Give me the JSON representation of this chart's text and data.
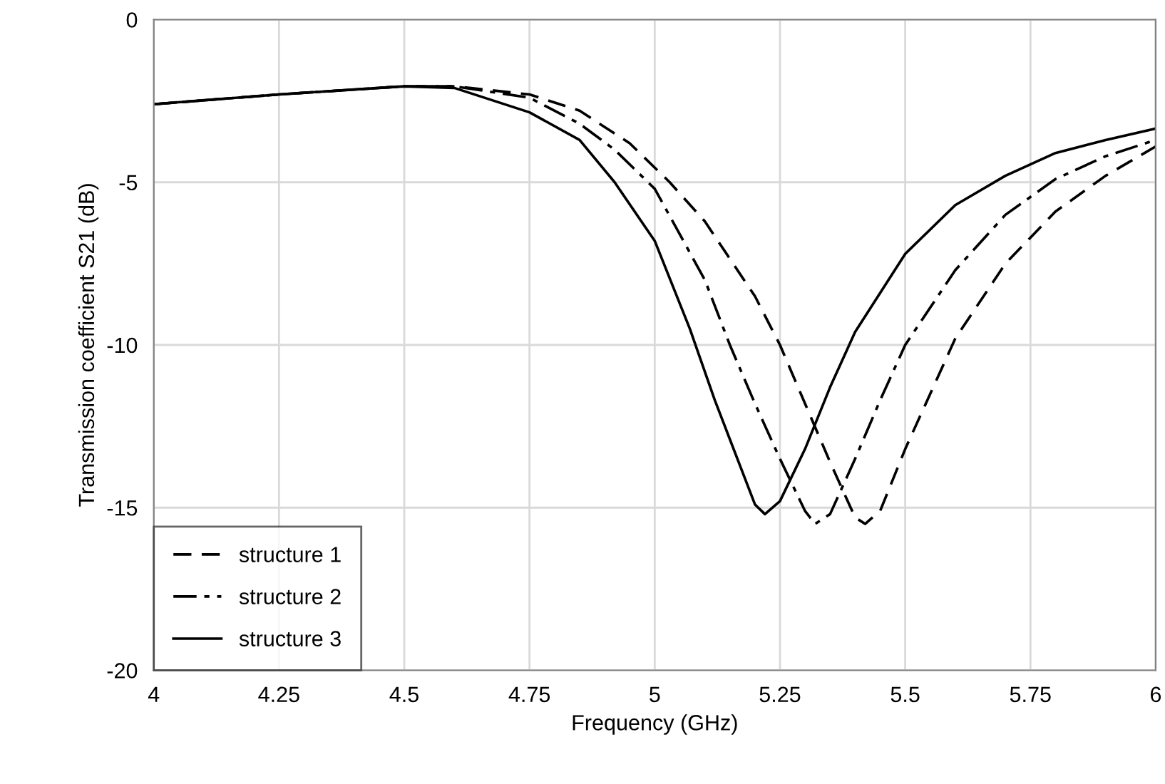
{
  "chart_data": {
    "type": "line",
    "xlabel": "Frequency (GHz)",
    "ylabel": "Transmission coefficient S21 (dB)",
    "xlim": [
      4,
      6
    ],
    "xticks": [
      4,
      4.25,
      4.5,
      4.75,
      5,
      5.25,
      5.5,
      5.75,
      6
    ],
    "ylim": [
      -20,
      0
    ],
    "yticks": [
      -20,
      -15,
      -10,
      -5,
      0
    ],
    "grid": true,
    "legend": "bottom left",
    "marker": "none",
    "series": [
      {
        "name": "structure 1",
        "color": "#000000",
        "line_style": "dashed",
        "x": [
          4,
          4.25,
          4.5,
          4.6,
          4.75,
          4.85,
          4.95,
          5.03,
          5.1,
          5.2,
          5.25,
          5.3,
          5.35,
          5.4,
          5.42,
          5.45,
          5.5,
          5.55,
          5.6,
          5.7,
          5.8,
          5.9,
          6
        ],
        "values": [
          -2.6,
          -2.3,
          -2.05,
          -2.05,
          -2.3,
          -2.8,
          -3.8,
          -5,
          -6.2,
          -8.5,
          -10,
          -11.8,
          -13.6,
          -15.3,
          -15.5,
          -15.1,
          -13.2,
          -11.5,
          -9.8,
          -7.5,
          -5.9,
          -4.8,
          -3.9
        ]
      },
      {
        "name": "structure 2",
        "color": "#000000",
        "line_style": "dashdot",
        "x": [
          4,
          4.25,
          4.5,
          4.6,
          4.75,
          4.85,
          4.92,
          5.0,
          5.1,
          5.15,
          5.2,
          5.25,
          5.3,
          5.32,
          5.35,
          5.4,
          5.45,
          5.5,
          5.6,
          5.7,
          5.8,
          5.9,
          6
        ],
        "values": [
          -2.6,
          -2.3,
          -2.05,
          -2.05,
          -2.4,
          -3.2,
          -4,
          -5.2,
          -8,
          -10,
          -11.8,
          -13.5,
          -15.1,
          -15.5,
          -15.2,
          -13.5,
          -11.7,
          -10,
          -7.7,
          -6,
          -4.9,
          -4.2,
          -3.7
        ]
      },
      {
        "name": "structure 3",
        "color": "#000000",
        "line_style": "solid",
        "x": [
          4,
          4.25,
          4.5,
          4.6,
          4.75,
          4.85,
          4.92,
          5.0,
          5.07,
          5.12,
          5.17,
          5.2,
          5.22,
          5.25,
          5.3,
          5.35,
          5.4,
          5.5,
          5.6,
          5.7,
          5.8,
          5.9,
          6
        ],
        "values": [
          -2.6,
          -2.3,
          -2.05,
          -2.1,
          -2.85,
          -3.7,
          -5,
          -6.8,
          -9.5,
          -11.7,
          -13.7,
          -14.9,
          -15.2,
          -14.8,
          -13.2,
          -11.3,
          -9.6,
          -7.2,
          -5.7,
          -4.8,
          -4.1,
          -3.7,
          -3.35
        ]
      }
    ]
  }
}
